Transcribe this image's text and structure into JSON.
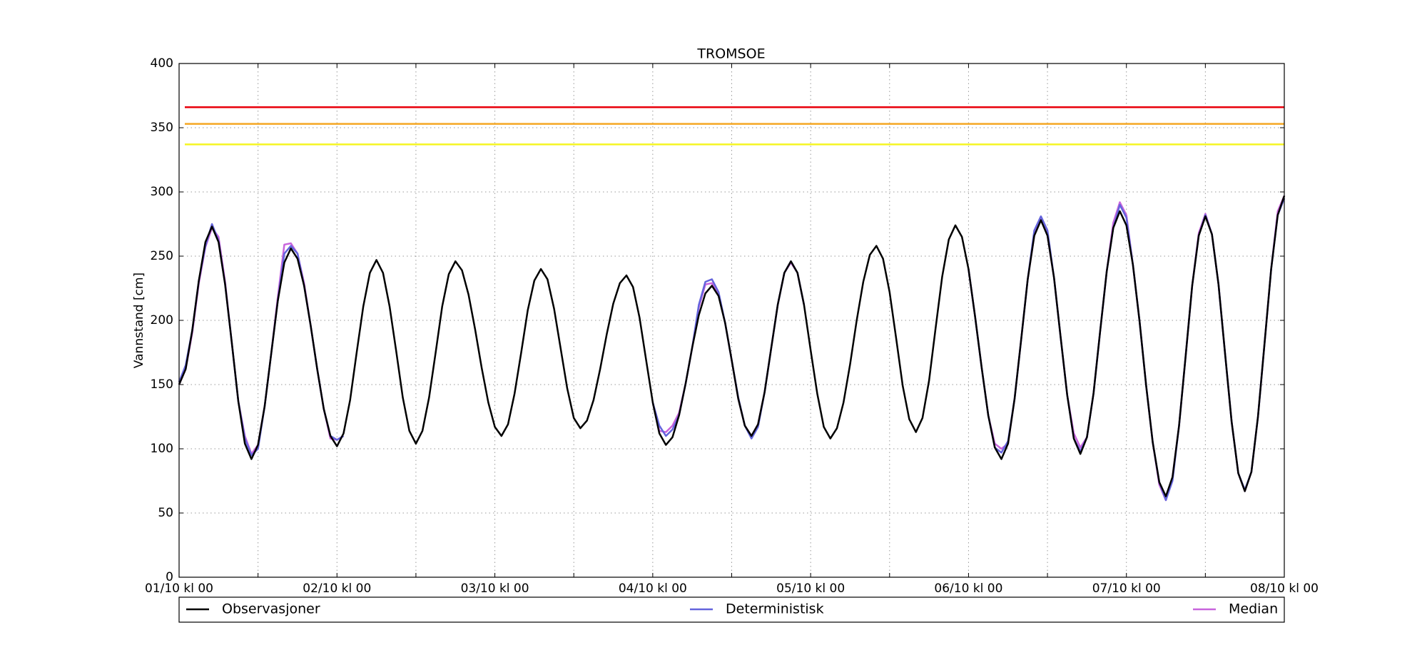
{
  "chart_data": {
    "type": "line",
    "title": "TROMSOE",
    "ylabel": "Vannstand [cm]",
    "x": [
      0,
      1,
      2,
      3,
      4,
      5,
      6,
      7,
      8,
      9,
      10,
      11,
      12,
      13,
      14,
      15,
      16,
      17,
      18,
      19,
      20,
      21,
      22,
      23,
      24,
      25,
      26,
      27,
      28,
      29,
      30,
      31,
      32,
      33,
      34,
      35,
      36,
      37,
      38,
      39,
      40,
      41,
      42,
      43,
      44,
      45,
      46,
      47,
      48,
      49,
      50,
      51,
      52,
      53,
      54,
      55,
      56,
      57,
      58,
      59,
      60,
      61,
      62,
      63,
      64,
      65,
      66,
      67,
      68,
      69,
      70,
      71,
      72,
      73,
      74,
      75,
      76,
      77,
      78,
      79,
      80,
      81,
      82,
      83,
      84,
      85,
      86,
      87,
      88,
      89,
      90,
      91,
      92,
      93,
      94,
      95,
      96,
      97,
      98,
      99,
      100,
      101,
      102,
      103,
      104,
      105,
      106,
      107,
      108,
      109,
      110,
      111,
      112,
      113,
      114,
      115,
      116,
      117,
      118,
      119,
      120,
      121,
      122,
      123,
      124,
      125,
      126,
      127,
      128,
      129,
      130,
      131,
      132,
      133,
      134,
      135,
      136,
      137,
      138,
      139,
      140,
      141,
      142,
      143,
      144,
      145,
      146,
      147,
      148,
      149,
      150,
      151,
      152,
      153,
      154,
      155,
      156,
      157,
      158,
      159,
      160,
      161,
      162,
      163,
      164,
      165,
      166,
      167,
      168
    ],
    "series": [
      {
        "name": "Observasjoner",
        "color": "#000000",
        "values": [
          150,
          162,
          192,
          231,
          261,
          273,
          261,
          228,
          183,
          137,
          104,
          92,
          103,
          133,
          174,
          215,
          245,
          256,
          248,
          227,
          196,
          162,
          131,
          110,
          102,
          112,
          138,
          175,
          211,
          237,
          247,
          237,
          211,
          176,
          140,
          114,
          104,
          114,
          140,
          175,
          211,
          236,
          246,
          239,
          220,
          193,
          163,
          136,
          117,
          110,
          119,
          143,
          175,
          208,
          231,
          240,
          232,
          209,
          178,
          147,
          124,
          116,
          122,
          138,
          162,
          189,
          213,
          229,
          235,
          226,
          202,
          169,
          136,
          112,
          103,
          109,
          126,
          151,
          179,
          204,
          221,
          227,
          219,
          198,
          169,
          139,
          118,
          110,
          119,
          144,
          178,
          212,
          237,
          246,
          237,
          212,
          177,
          143,
          117,
          108,
          116,
          136,
          166,
          200,
          230,
          251,
          258,
          248,
          222,
          186,
          149,
          123,
          113,
          124,
          153,
          194,
          234,
          263,
          274,
          265,
          240,
          203,
          163,
          126,
          101,
          92,
          104,
          139,
          185,
          232,
          266,
          278,
          266,
          233,
          187,
          142,
          108,
          96,
          109,
          143,
          191,
          238,
          272,
          285,
          274,
          243,
          199,
          149,
          105,
          74,
          63,
          78,
          118,
          172,
          227,
          266,
          281,
          267,
          228,
          174,
          121,
          81,
          67,
          82,
          125,
          182,
          240,
          282,
          297
        ]
      },
      {
        "name": "Deterministisk",
        "color": "#6464dc",
        "values": [
          152,
          165,
          192,
          231,
          258,
          275,
          262,
          228,
          183,
          137,
          108,
          95,
          100,
          133,
          174,
          215,
          252,
          258,
          252,
          227,
          196,
          162,
          131,
          110,
          107,
          110,
          null,
          null,
          null,
          null,
          null,
          null,
          null,
          null,
          null,
          null,
          null,
          null,
          null,
          null,
          null,
          null,
          null,
          null,
          null,
          null,
          null,
          null,
          null,
          null,
          null,
          null,
          null,
          null,
          null,
          null,
          null,
          null,
          null,
          null,
          null,
          null,
          null,
          null,
          null,
          null,
          null,
          null,
          null,
          null,
          null,
          null,
          136,
          118,
          110,
          115,
          126,
          151,
          179,
          212,
          230,
          232,
          222,
          198,
          169,
          140,
          118,
          108,
          117,
          144,
          178,
          212,
          237,
          246,
          237,
          212,
          null,
          null,
          null,
          null,
          null,
          null,
          null,
          null,
          null,
          null,
          null,
          null,
          null,
          null,
          null,
          null,
          null,
          null,
          null,
          null,
          null,
          null,
          null,
          null,
          240,
          203,
          163,
          126,
          101,
          97,
          106,
          139,
          185,
          232,
          270,
          281,
          270,
          233,
          187,
          142,
          108,
          98,
          109,
          143,
          191,
          238,
          272,
          290,
          280,
          243,
          199,
          149,
          105,
          74,
          60,
          75,
          118,
          172,
          227,
          266,
          282,
          267,
          228,
          174,
          121,
          81,
          68,
          82,
          125,
          182,
          240,
          282,
          295
        ]
      },
      {
        "name": "Median",
        "color": "#c864dc",
        "values": [
          150,
          162,
          190,
          229,
          257,
          272,
          265,
          230,
          183,
          137,
          110,
          96,
          103,
          133,
          174,
          218,
          259,
          260,
          252,
          229,
          196,
          162,
          131,
          108,
          107,
          110,
          null,
          null,
          null,
          null,
          null,
          null,
          null,
          null,
          null,
          null,
          null,
          null,
          null,
          null,
          null,
          null,
          null,
          null,
          null,
          null,
          null,
          null,
          null,
          null,
          null,
          null,
          null,
          null,
          null,
          null,
          null,
          null,
          null,
          null,
          null,
          null,
          null,
          null,
          null,
          null,
          null,
          null,
          null,
          null,
          null,
          null,
          136,
          114,
          113,
          118,
          128,
          151,
          179,
          210,
          228,
          229,
          220,
          198,
          169,
          139,
          118,
          110,
          119,
          144,
          178,
          212,
          237,
          245,
          237,
          212,
          null,
          null,
          null,
          null,
          null,
          null,
          null,
          null,
          null,
          null,
          null,
          null,
          null,
          null,
          null,
          null,
          null,
          null,
          null,
          null,
          null,
          null,
          null,
          null,
          240,
          203,
          163,
          126,
          104,
          100,
          104,
          139,
          185,
          232,
          266,
          280,
          266,
          233,
          187,
          142,
          112,
          101,
          109,
          143,
          191,
          238,
          276,
          292,
          282,
          243,
          199,
          149,
          105,
          72,
          60,
          78,
          118,
          172,
          227,
          268,
          283,
          267,
          228,
          174,
          121,
          81,
          67,
          82,
          125,
          182,
          240,
          285,
          297
        ]
      }
    ],
    "thresholds": [
      {
        "value": 366,
        "color": "#e8000b"
      },
      {
        "value": 353,
        "color": "#f5a623"
      },
      {
        "value": 337,
        "color": "#f5f522"
      }
    ],
    "xlim": [
      0,
      168
    ],
    "xticks": [
      {
        "value": 0,
        "label": "01/10 kl 00"
      },
      {
        "value": 12,
        "label": null
      },
      {
        "value": 24,
        "label": "02/10 kl 00"
      },
      {
        "value": 36,
        "label": null
      },
      {
        "value": 48,
        "label": "03/10 kl 00"
      },
      {
        "value": 60,
        "label": null
      },
      {
        "value": 72,
        "label": "04/10 kl 00"
      },
      {
        "value": 84,
        "label": null
      },
      {
        "value": 96,
        "label": "05/10 kl 00"
      },
      {
        "value": 108,
        "label": null
      },
      {
        "value": 120,
        "label": "06/10 kl 00"
      },
      {
        "value": 132,
        "label": null
      },
      {
        "value": 144,
        "label": "07/10 kl 00"
      },
      {
        "value": 156,
        "label": null
      },
      {
        "value": 168,
        "label": "08/10 kl 00"
      }
    ],
    "ylim": [
      0,
      400
    ],
    "yticks": [
      0,
      50,
      100,
      150,
      200,
      250,
      300,
      350,
      400
    ],
    "grid": true,
    "legend": "bottom"
  }
}
